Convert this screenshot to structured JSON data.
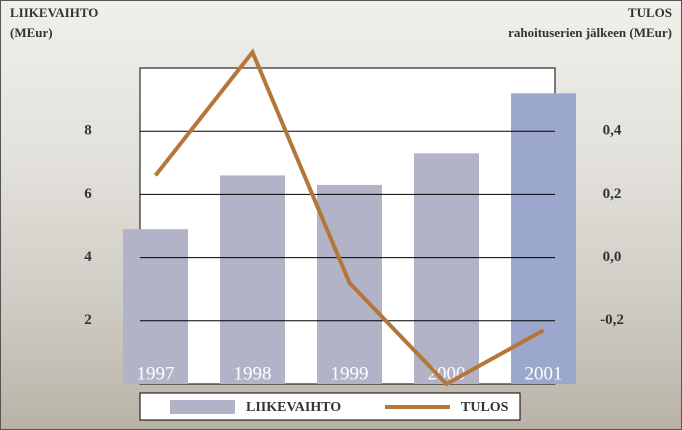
{
  "chart_data": {
    "type": "bar_line",
    "ylabel": [
      "LIIKEVAIHTO",
      "(MEur)"
    ],
    "y2label": [
      "TULOS",
      "rahoituserien jälkeen (MEur)"
    ],
    "categories": [
      "1997",
      "1998",
      "1999",
      "2000",
      "2001"
    ],
    "series": [
      {
        "name": "LIIKEVAIHTO",
        "type": "bar",
        "color": "#b3b3c8",
        "colors": [
          "#b3b3c8",
          "#b3b3c8",
          "#b3b3c8",
          "#b3b3c8",
          "#9ca7cd"
        ],
        "values": [
          4.9,
          6.6,
          6.3,
          7.3,
          9.2
        ]
      },
      {
        "name": "TULOS",
        "type": "line",
        "axis": "y2",
        "color": "#b5763a",
        "values": [
          0.26,
          0.65,
          -0.08,
          -0.4,
          -0.23
        ]
      }
    ],
    "ylim": [
      0,
      10
    ],
    "yticks": [
      2,
      4,
      6,
      8
    ],
    "y2lim": [
      -0.4,
      0.6
    ],
    "y2ticks": [
      {
        "value": -0.2,
        "label": "-0,2"
      },
      {
        "value": 0,
        "label": "0,0"
      },
      {
        "value": 0.2,
        "label": "0,2"
      },
      {
        "value": 0.4,
        "label": "0,4"
      }
    ],
    "grid": true
  }
}
